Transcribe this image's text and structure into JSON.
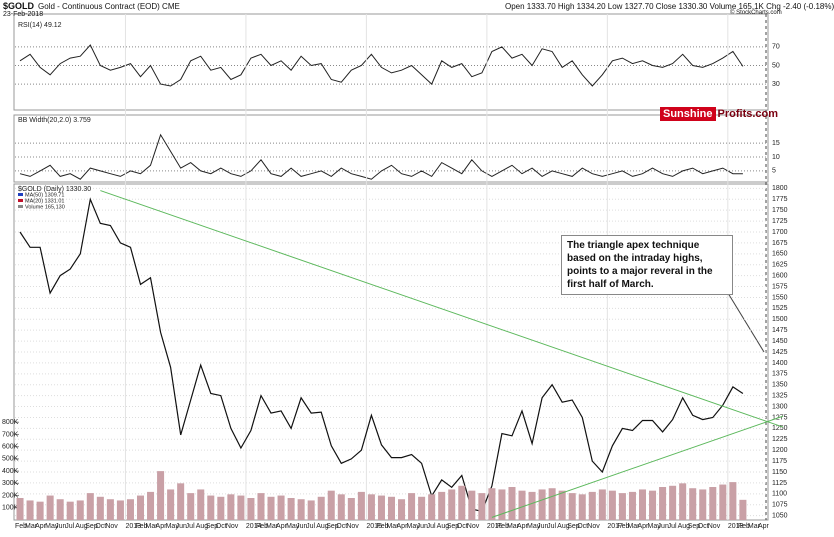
{
  "header": {
    "symbol": "$GOLD",
    "name": "Gold - Continuous Contract (EOD) CME",
    "date": "23-Feb-2018",
    "quote": "Open 1333.70  High 1334.20  Low 1327.70  Close 1330.30  Volume 165.1K  Chg -2.40 (-0.18%)",
    "credit": "© StockCharts.com",
    "logo_a": "Sunshine",
    "logo_b": "Profits.com"
  },
  "chart_data": [
    {
      "type": "line",
      "title": "RSI(14) 49.12",
      "color": "#222",
      "ylim": [
        0,
        100
      ],
      "yticks": [
        30,
        50,
        70
      ],
      "values": [
        55,
        62,
        48,
        40,
        52,
        58,
        60,
        72,
        50,
        45,
        48,
        52,
        38,
        50,
        30,
        28,
        35,
        55,
        60,
        45,
        48,
        35,
        40,
        58,
        62,
        50,
        55,
        45,
        60,
        50,
        52,
        35,
        32,
        45,
        50,
        62,
        48,
        42,
        45,
        50,
        40,
        30,
        55,
        48,
        52,
        38,
        42,
        65,
        70,
        58,
        62,
        50,
        68,
        65,
        48,
        55,
        40,
        28,
        40,
        55,
        58,
        52,
        55,
        50,
        48,
        52,
        62,
        50,
        48,
        52,
        58,
        65,
        49,
        null,
        null
      ]
    },
    {
      "type": "line",
      "title": "BB Width(20,2.0) 3.759",
      "color": "#222",
      "ylim": [
        1,
        19
      ],
      "yticks": [
        5,
        10,
        15
      ],
      "values": [
        4,
        3,
        5,
        7,
        3,
        4,
        2,
        6,
        5,
        4,
        3,
        5,
        4,
        7,
        18,
        12,
        6,
        8,
        5,
        4,
        6,
        4,
        3,
        5,
        9,
        4,
        3,
        6,
        3,
        4,
        5,
        3,
        6,
        4,
        3,
        2,
        5,
        7,
        4,
        3,
        5,
        3,
        8,
        6,
        4,
        9,
        5,
        3,
        5,
        7,
        4,
        6,
        3,
        5,
        4,
        3,
        6,
        4,
        3,
        4,
        5,
        3,
        4,
        6,
        4,
        3,
        5,
        6,
        4,
        5,
        6,
        4,
        4,
        null,
        null
      ]
    },
    {
      "type": "line",
      "title": "$GOLD (Daily) 1330.30",
      "legend": [
        "MA(50) 1309.71",
        "MA(20) 1331.01",
        "Volume 165,130"
      ],
      "legend_colors": [
        "#1f3fbf",
        "#c0102a",
        "#888"
      ],
      "annotation": "The triangle apex technique based on the intraday highs, points to a major reveral in the first half of March.",
      "categories": [
        "Feb",
        "Mar",
        "Apr",
        "May",
        "Jun",
        "Jul",
        "Aug",
        "Sep",
        "Oct",
        "Nov",
        null,
        "2013",
        "Feb",
        "Mar",
        "Apr",
        "May",
        "Jun",
        "Jul",
        "Aug",
        "Sep",
        "Oct",
        "Nov",
        null,
        "2014",
        "Feb",
        "Mar",
        "Apr",
        "May",
        "Jun",
        "Jul",
        "Aug",
        "Sep",
        "Oct",
        "Nov",
        null,
        "2015",
        "Feb",
        "Mar",
        "Apr",
        "May",
        "Jun",
        "Jul",
        "Aug",
        "Sep",
        "Oct",
        "Nov",
        null,
        "2016",
        "Feb",
        "Mar",
        "Apr",
        "May",
        "Jun",
        "Jul",
        "Aug",
        "Sep",
        "Oct",
        "Nov",
        null,
        "2017",
        "Feb",
        "Mar",
        "Apr",
        "May",
        "Jun",
        "Jul",
        "Aug",
        "Sep",
        "Oct",
        "Nov",
        null,
        "2018",
        "Feb",
        "Mar",
        "Apr"
      ],
      "series": [
        {
          "name": "$GOLD",
          "color": "#111",
          "values": [
            1700,
            1665,
            1665,
            1560,
            1600,
            1615,
            1650,
            1775,
            1720,
            1715,
            1675,
            1665,
            1580,
            1595,
            1470,
            1390,
            1235,
            1315,
            1395,
            1330,
            1325,
            1250,
            1205,
            1245,
            1325,
            1285,
            1290,
            1250,
            1320,
            1285,
            1287,
            1210,
            1170,
            1180,
            1200,
            1280,
            1212,
            1183,
            1183,
            1190,
            1170,
            1095,
            1132,
            1115,
            1142,
            1065,
            1060,
            1118,
            1238,
            1233,
            1290,
            1215,
            1320,
            1350,
            1310,
            1315,
            1275,
            1175,
            1150,
            1210,
            1250,
            1245,
            1268,
            1268,
            1242,
            1270,
            1320,
            1280,
            1270,
            1275,
            1303,
            1345,
            1330,
            null,
            null
          ]
        },
        {
          "name": "Volume",
          "color": "#c9a0a6",
          "axis": "y2",
          "values": [
            180000,
            160000,
            150000,
            200000,
            170000,
            150000,
            160000,
            220000,
            190000,
            170000,
            160000,
            170000,
            200000,
            230000,
            400000,
            250000,
            300000,
            220000,
            250000,
            200000,
            190000,
            210000,
            200000,
            180000,
            220000,
            190000,
            200000,
            180000,
            170000,
            160000,
            190000,
            240000,
            210000,
            180000,
            230000,
            210000,
            200000,
            190000,
            170000,
            220000,
            190000,
            210000,
            230000,
            250000,
            280000,
            240000,
            220000,
            260000,
            250000,
            270000,
            240000,
            230000,
            250000,
            260000,
            240000,
            220000,
            210000,
            230000,
            250000,
            240000,
            220000,
            230000,
            250000,
            240000,
            270000,
            280000,
            300000,
            260000,
            250000,
            270000,
            290000,
            310000,
            165000,
            null,
            null
          ]
        }
      ],
      "trendlines": [
        {
          "color": "#5cb85c",
          "x": [
            8,
            76
          ],
          "values": [
            1795,
            1253
          ]
        },
        {
          "color": "#5cb85c",
          "x": [
            47,
            76
          ],
          "values": [
            1046,
            1278
          ]
        }
      ],
      "ylim": [
        1040,
        1810
      ],
      "yticks": [
        1050,
        1075,
        1100,
        1125,
        1150,
        1175,
        1200,
        1225,
        1250,
        1275,
        1300,
        1325,
        1350,
        1375,
        1400,
        1425,
        1450,
        1475,
        1500,
        1525,
        1550,
        1575,
        1600,
        1625,
        1650,
        1675,
        1700,
        1725,
        1750,
        1775,
        1800
      ],
      "y2lim": [
        0,
        900000
      ],
      "y2ticks": [
        {
          "value": 100000,
          "label": "100K"
        },
        {
          "value": 200000,
          "label": "200K"
        },
        {
          "value": 300000,
          "label": "300K"
        },
        {
          "value": 400000,
          "label": "400K"
        },
        {
          "value": 500000,
          "label": "500K"
        },
        {
          "value": 600000,
          "label": "600K"
        },
        {
          "value": 700000,
          "label": "700K"
        },
        {
          "value": 800000,
          "label": "800K"
        }
      ],
      "grid": true
    }
  ]
}
